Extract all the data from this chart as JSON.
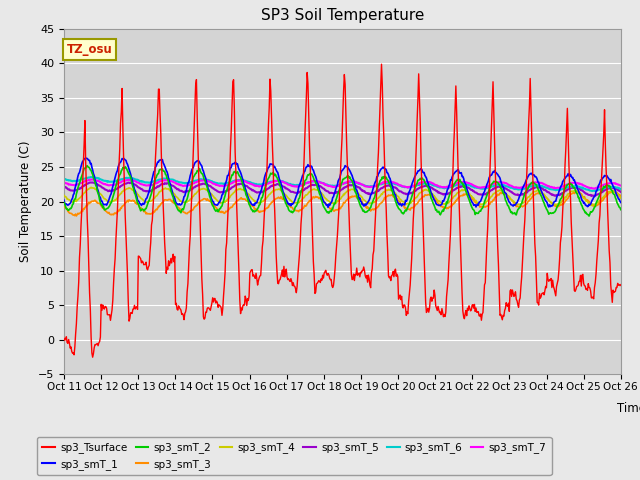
{
  "title": "SP3 Soil Temperature",
  "ylabel": "Soil Temperature (C)",
  "xlabel": "Time",
  "tz_label": "TZ_osu",
  "ylim": [
    -5,
    45
  ],
  "yticks": [
    -5,
    0,
    5,
    10,
    15,
    20,
    25,
    30,
    35,
    40,
    45
  ],
  "series_colors": {
    "sp3_Tsurface": "#FF0000",
    "sp3_smT_1": "#0000FF",
    "sp3_smT_2": "#00CC00",
    "sp3_smT_3": "#FF8C00",
    "sp3_smT_4": "#CCCC00",
    "sp3_smT_5": "#9900CC",
    "sp3_smT_6": "#00CCCC",
    "sp3_smT_7": "#FF00FF"
  },
  "bg_color": "#E8E8E8",
  "plot_bg_color": "#D4D4D4",
  "grid_color": "#FFFFFF"
}
